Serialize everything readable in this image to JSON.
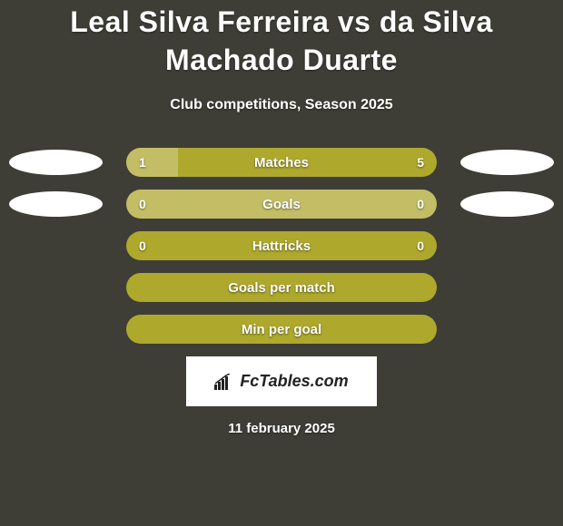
{
  "background_color": "#3e3e36",
  "text_color": "#ffffff",
  "title": "Leal Silva Ferreira vs da Silva Machado Duarte",
  "title_fontsize": 32,
  "subtitle": "Club competitions, Season 2025",
  "subtitle_fontsize": 16,
  "logo_text": "FcTables.com",
  "date_text": "11 february 2025",
  "oval_color": "#ffffff",
  "colors": {
    "bar_main": "#aea82d",
    "bar_alt": "#c3be66",
    "oval": "#ffffff"
  },
  "stats": [
    {
      "label": "Matches",
      "left_val": "1",
      "right_val": "5",
      "show_vals": true,
      "show_ovals": true,
      "bar_bg": "#aea82d",
      "left_fill_width_pct": 16.7,
      "left_fill_color": "#c3be66"
    },
    {
      "label": "Goals",
      "left_val": "0",
      "right_val": "0",
      "show_vals": true,
      "show_ovals": true,
      "bar_bg": "#c3be66",
      "left_fill_width_pct": 0,
      "left_fill_color": "#aea82d"
    },
    {
      "label": "Hattricks",
      "left_val": "0",
      "right_val": "0",
      "show_vals": true,
      "show_ovals": false,
      "bar_bg": "#aea82d",
      "left_fill_width_pct": 0,
      "left_fill_color": "#c3be66"
    },
    {
      "label": "Goals per match",
      "left_val": "",
      "right_val": "",
      "show_vals": false,
      "show_ovals": false,
      "bar_bg": "#aea82d",
      "left_fill_width_pct": 0,
      "left_fill_color": "#c3be66"
    },
    {
      "label": "Min per goal",
      "left_val": "",
      "right_val": "",
      "show_vals": false,
      "show_ovals": false,
      "bar_bg": "#aea82d",
      "left_fill_width_pct": 0,
      "left_fill_color": "#c3be66"
    }
  ]
}
